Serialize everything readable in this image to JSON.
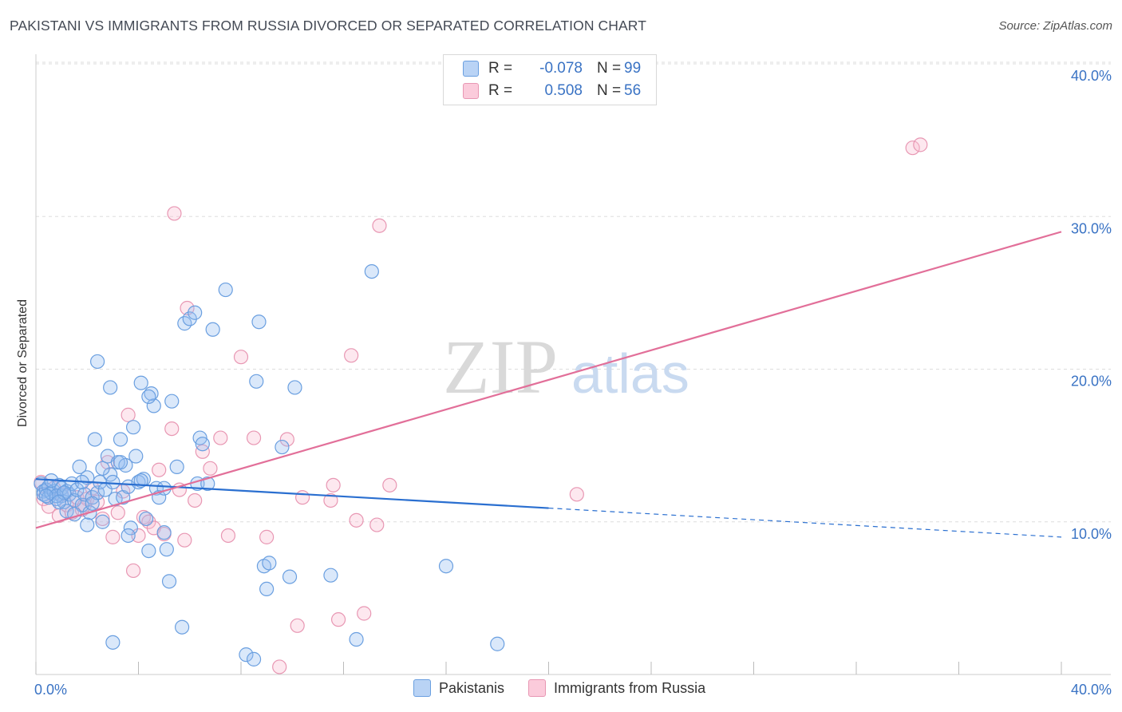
{
  "title": "PAKISTANI VS IMMIGRANTS FROM RUSSIA DIVORCED OR SEPARATED CORRELATION CHART",
  "source": "Source: ZipAtlas.com",
  "watermark": {
    "zip": "ZIP",
    "atlas": "atlas"
  },
  "legend": {
    "rows": [
      {
        "r_label": "R =",
        "r_value": "-0.078",
        "n_label": "N =",
        "n_value": "99",
        "color": "#b9d3f5",
        "border": "#6a9fe0"
      },
      {
        "r_label": "R =",
        "r_value": "0.508",
        "n_label": "N =",
        "n_value": "56",
        "color": "#fbcbdb",
        "border": "#e897b3"
      }
    ]
  },
  "bottom_legend": {
    "series1": "Pakistanis",
    "series2": "Immigrants from Russia"
  },
  "colors": {
    "blue": "#6a9fe0",
    "blue_fill": "rgba(150,190,240,0.35)",
    "blue_line": "#2a6fd0",
    "pink": "#e897b3",
    "pink_fill": "rgba(250,190,210,0.35)",
    "pink_line": "#e26f99",
    "tick": "#3a73c4"
  },
  "chart_data": {
    "type": "scatter",
    "title": "PAKISTANI VS IMMIGRANTS FROM RUSSIA DIVORCED OR SEPARATED CORRELATION CHART",
    "xlabel": "",
    "ylabel": "Divorced or Separated",
    "xlim": [
      0,
      40
    ],
    "ylim": [
      0,
      40
    ],
    "x_tick_labels": [
      "0.0%",
      "40.0%"
    ],
    "y_tick_labels": [
      "10.0%",
      "20.0%",
      "30.0%",
      "40.0%"
    ],
    "y_ticks": [
      10,
      20,
      30,
      40
    ],
    "grid": true,
    "legend_position": "top-center",
    "series": [
      {
        "name": "Pakistanis",
        "r": -0.078,
        "n": 99,
        "trend": {
          "x0": 0,
          "y0": 12.8,
          "x1": 20,
          "y1": 10.9,
          "dashed_to_x": 40,
          "dashed_to_y": 9.0
        },
        "points": [
          [
            0.2,
            12.5
          ],
          [
            0.3,
            12.0
          ],
          [
            0.3,
            11.8
          ],
          [
            0.4,
            12.1
          ],
          [
            0.5,
            11.6
          ],
          [
            0.5,
            12.3
          ],
          [
            0.6,
            11.9
          ],
          [
            0.7,
            12.0
          ],
          [
            0.8,
            11.5
          ],
          [
            0.9,
            12.4
          ],
          [
            1.0,
            11.7
          ],
          [
            1.0,
            12.2
          ],
          [
            1.1,
            11.3
          ],
          [
            1.2,
            12.0
          ],
          [
            1.3,
            11.8
          ],
          [
            1.4,
            12.5
          ],
          [
            1.5,
            11.4
          ],
          [
            1.6,
            12.1
          ],
          [
            1.7,
            13.6
          ],
          [
            1.8,
            11.1
          ],
          [
            1.9,
            11.8
          ],
          [
            2.0,
            12.9
          ],
          [
            2.1,
            10.6
          ],
          [
            2.2,
            11.6
          ],
          [
            2.3,
            15.4
          ],
          [
            2.4,
            11.9
          ],
          [
            2.5,
            12.6
          ],
          [
            2.6,
            10.0
          ],
          [
            2.7,
            12.1
          ],
          [
            2.8,
            14.3
          ],
          [
            2.9,
            13.1
          ],
          [
            3.0,
            12.6
          ],
          [
            3.1,
            11.5
          ],
          [
            3.2,
            13.9
          ],
          [
            3.3,
            15.4
          ],
          [
            3.4,
            11.6
          ],
          [
            3.5,
            13.7
          ],
          [
            3.6,
            12.3
          ],
          [
            3.7,
            9.6
          ],
          [
            3.8,
            16.2
          ],
          [
            3.9,
            14.3
          ],
          [
            4.0,
            12.6
          ],
          [
            4.1,
            19.1
          ],
          [
            4.2,
            12.8
          ],
          [
            4.3,
            10.2
          ],
          [
            4.4,
            8.1
          ],
          [
            4.5,
            18.4
          ],
          [
            4.6,
            17.6
          ],
          [
            4.7,
            12.2
          ],
          [
            4.8,
            11.6
          ],
          [
            5.0,
            9.3
          ],
          [
            5.1,
            8.2
          ],
          [
            5.2,
            6.1
          ],
          [
            5.3,
            17.9
          ],
          [
            5.5,
            13.6
          ],
          [
            5.7,
            3.1
          ],
          [
            5.8,
            23.0
          ],
          [
            6.0,
            23.3
          ],
          [
            6.2,
            23.7
          ],
          [
            6.3,
            12.5
          ],
          [
            6.4,
            15.5
          ],
          [
            6.5,
            15.1
          ],
          [
            6.7,
            12.5
          ],
          [
            6.9,
            22.6
          ],
          [
            2.4,
            20.5
          ],
          [
            2.9,
            18.8
          ],
          [
            3.6,
            9.1
          ],
          [
            4.1,
            12.7
          ],
          [
            5.0,
            12.2
          ],
          [
            2.0,
            9.8
          ],
          [
            1.2,
            10.7
          ],
          [
            0.8,
            11.7
          ],
          [
            1.5,
            10.5
          ],
          [
            7.4,
            25.2
          ],
          [
            8.2,
            1.3
          ],
          [
            8.5,
            1.0
          ],
          [
            8.6,
            19.2
          ],
          [
            8.7,
            23.1
          ],
          [
            8.9,
            7.1
          ],
          [
            9.0,
            5.6
          ],
          [
            9.1,
            7.3
          ],
          [
            9.6,
            14.9
          ],
          [
            9.9,
            6.4
          ],
          [
            10.1,
            18.8
          ],
          [
            11.5,
            6.5
          ],
          [
            12.5,
            2.3
          ],
          [
            13.1,
            26.4
          ],
          [
            16.0,
            7.1
          ],
          [
            18.0,
            2.0
          ],
          [
            3.0,
            2.1
          ],
          [
            2.6,
            13.5
          ],
          [
            1.8,
            12.6
          ],
          [
            0.6,
            12.7
          ],
          [
            2.2,
            11.2
          ],
          [
            3.3,
            13.9
          ],
          [
            4.4,
            18.2
          ],
          [
            1.1,
            11.9
          ],
          [
            0.9,
            11.3
          ],
          [
            0.4,
            11.7
          ]
        ]
      },
      {
        "name": "Immigrants from Russia",
        "r": 0.508,
        "n": 56,
        "trend": {
          "x0": 0,
          "y0": 9.6,
          "x1": 40,
          "y1": 29.0
        },
        "points": [
          [
            0.2,
            12.6
          ],
          [
            0.3,
            11.5
          ],
          [
            0.5,
            11.0
          ],
          [
            0.7,
            12.2
          ],
          [
            0.9,
            10.4
          ],
          [
            1.0,
            11.8
          ],
          [
            1.2,
            11.1
          ],
          [
            1.4,
            10.6
          ],
          [
            1.6,
            11.6
          ],
          [
            1.8,
            10.8
          ],
          [
            2.0,
            11.5
          ],
          [
            2.2,
            12.2
          ],
          [
            2.4,
            11.3
          ],
          [
            2.6,
            10.2
          ],
          [
            2.8,
            13.9
          ],
          [
            3.0,
            9.0
          ],
          [
            3.2,
            10.6
          ],
          [
            3.4,
            12.0
          ],
          [
            3.6,
            17.0
          ],
          [
            3.8,
            6.8
          ],
          [
            4.0,
            9.1
          ],
          [
            4.2,
            10.3
          ],
          [
            4.4,
            10.0
          ],
          [
            4.6,
            9.6
          ],
          [
            4.8,
            13.4
          ],
          [
            5.0,
            9.2
          ],
          [
            5.3,
            16.1
          ],
          [
            5.6,
            12.1
          ],
          [
            5.8,
            8.8
          ],
          [
            6.2,
            11.4
          ],
          [
            6.5,
            14.6
          ],
          [
            6.8,
            13.5
          ],
          [
            7.2,
            15.5
          ],
          [
            7.5,
            9.1
          ],
          [
            8.0,
            20.8
          ],
          [
            8.5,
            15.5
          ],
          [
            9.0,
            9.0
          ],
          [
            9.5,
            0.5
          ],
          [
            9.8,
            15.4
          ],
          [
            10.2,
            3.2
          ],
          [
            10.4,
            11.6
          ],
          [
            11.5,
            11.4
          ],
          [
            11.6,
            12.4
          ],
          [
            11.8,
            3.6
          ],
          [
            12.3,
            20.9
          ],
          [
            12.5,
            10.1
          ],
          [
            12.8,
            4.0
          ],
          [
            13.3,
            9.8
          ],
          [
            13.4,
            29.4
          ],
          [
            13.8,
            12.4
          ],
          [
            21.1,
            11.8
          ],
          [
            34.2,
            34.5
          ],
          [
            34.5,
            34.7
          ],
          [
            5.4,
            30.2
          ],
          [
            5.9,
            24.0
          ],
          [
            1.9,
            11.1
          ]
        ]
      }
    ]
  }
}
